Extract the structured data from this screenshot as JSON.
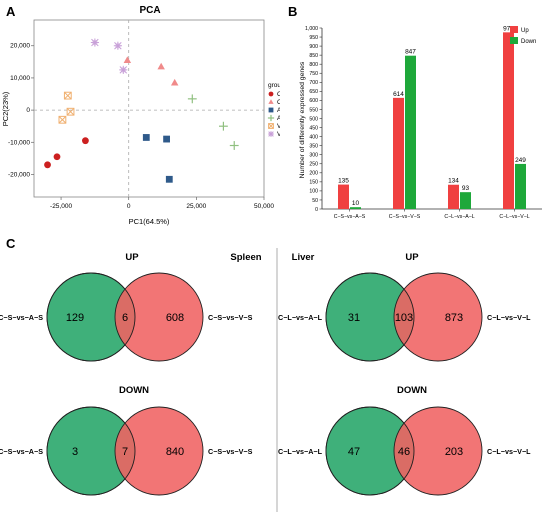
{
  "panels": {
    "a": {
      "letter": "A"
    },
    "b": {
      "letter": "B"
    },
    "c": {
      "letter": "C"
    }
  },
  "chart_data": [
    {
      "type": "scatter",
      "title": "PCA",
      "xlabel": "PC1(64.5%)",
      "ylabel": "PC2(23%)",
      "xlim": [
        -35000,
        50000
      ],
      "ylim": [
        -27000,
        28000
      ],
      "xticks": [
        -25000,
        0,
        25000,
        50000
      ],
      "xtick_labels": [
        "-25,000",
        "0",
        "25,000",
        "50,000"
      ],
      "yticks": [
        20000,
        10000,
        0,
        -10000,
        -20000
      ],
      "ytick_labels": [
        "20,000",
        "10,000",
        "0",
        "-10,000",
        "-20,000"
      ],
      "legend_title": "group",
      "legend_position": "right",
      "reference_lines": {
        "x": 0,
        "y": 0,
        "style": "dashed"
      },
      "series": [
        {
          "name": "C−S",
          "marker": "circle",
          "color": "#cc2020",
          "points": [
            [
              -30000,
              -17000
            ],
            [
              -26500,
              -14500
            ],
            [
              -16000,
              -9500
            ]
          ]
        },
        {
          "name": "C−L",
          "marker": "triangle",
          "color": "#f08a8a",
          "points": [
            [
              -500,
              15500
            ],
            [
              12000,
              13500
            ],
            [
              17000,
              8500
            ]
          ]
        },
        {
          "name": "A−S",
          "marker": "square",
          "color": "#2f5a8a",
          "points": [
            [
              6500,
              -8500
            ],
            [
              14000,
              -9000
            ],
            [
              15000,
              -21500
            ]
          ]
        },
        {
          "name": "A−L",
          "marker": "plus",
          "color": "#90c080",
          "points": [
            [
              23500,
              3500
            ],
            [
              35000,
              -5000
            ],
            [
              39000,
              -11000
            ]
          ]
        },
        {
          "name": "V−S",
          "marker": "boxed-x",
          "color": "#f0b070",
          "points": [
            [
              -22500,
              4500
            ],
            [
              -24500,
              -3000
            ],
            [
              -21500,
              -500
            ]
          ]
        },
        {
          "name": "V−L",
          "marker": "asterisk",
          "color": "#c8a0d8",
          "points": [
            [
              -12500,
              21000
            ],
            [
              -4000,
              20000
            ],
            [
              -2000,
              12500
            ]
          ]
        }
      ]
    },
    {
      "type": "bar",
      "ylabel": "Number of differently expressed genes",
      "ylim": [
        0,
        1000
      ],
      "yticks": [
        0,
        50,
        100,
        150,
        200,
        250,
        300,
        350,
        400,
        450,
        500,
        550,
        600,
        650,
        700,
        750,
        800,
        850,
        900,
        950,
        1000
      ],
      "ytick_labels": [
        "0",
        "50",
        "100",
        "150",
        "200",
        "250",
        "300",
        "350",
        "400",
        "450",
        "500",
        "550",
        "600",
        "650",
        "700",
        "750",
        "800",
        "850",
        "900",
        "950",
        "1,000"
      ],
      "categories": [
        "C−S−vs−A−S",
        "C−S−vs−V−S",
        "C−L−vs−A−L",
        "C−L−vs−V−L"
      ],
      "legend_position": "top-right",
      "series": [
        {
          "name": "Up",
          "color": "#f04040",
          "values": [
            135,
            614,
            134,
            976
          ]
        },
        {
          "name": "Down",
          "color": "#1ea83a",
          "values": [
            10,
            847,
            93,
            249
          ]
        }
      ]
    }
  ],
  "venn": {
    "headings": {
      "up": "UP",
      "down": "DOWN",
      "spleen": "Spleen",
      "liver": "Liver"
    },
    "colors": {
      "left": "#3fb07a",
      "right": "#f06262"
    },
    "diagrams": [
      {
        "left_label": "C−S−vs−A−S",
        "right_label": "C−S−vs−V−S",
        "left_only": "129",
        "both": "6",
        "right_only": "608"
      },
      {
        "left_label": "C−L−vs−A−L",
        "right_label": "C−L−vs−V−L",
        "left_only": "31",
        "both": "103",
        "right_only": "873"
      },
      {
        "left_label": "C−S−vs−A−S",
        "right_label": "C−S−vs−V−S",
        "left_only": "3",
        "both": "7",
        "right_only": "840"
      },
      {
        "left_label": "C−L−vs−A−L",
        "right_label": "C−L−vs−V−L",
        "left_only": "47",
        "both": "46",
        "right_only": "203"
      }
    ]
  }
}
